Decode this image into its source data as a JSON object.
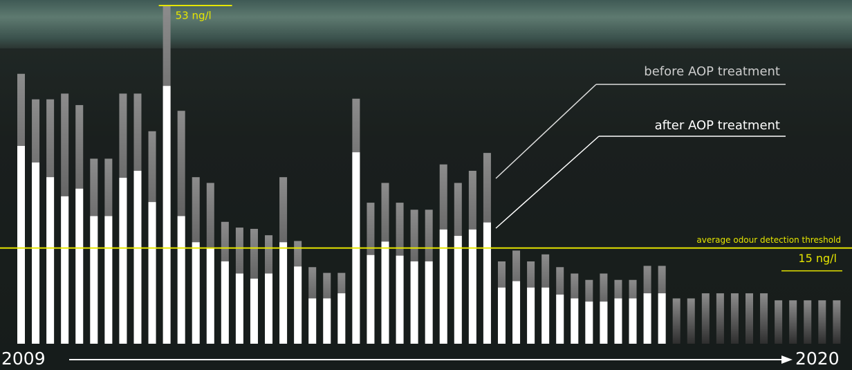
{
  "chart_data": {
    "type": "bar",
    "series": [
      {
        "name": "before AOP treatment",
        "color": "#8c8c8c",
        "values": [
          42.3,
          38.3,
          38.3,
          39.2,
          37.4,
          29.0,
          29.0,
          39.2,
          39.2,
          33.3,
          53,
          36.5,
          26.1,
          25.2,
          19.1,
          18.2,
          18.0,
          17.0,
          26.1,
          16.1,
          12.0,
          11.1,
          11.1,
          38.4,
          22.1,
          25.2,
          22.1,
          21.0,
          21.0,
          28.1,
          25.2,
          27.1,
          29.9,
          12.9,
          14.6,
          12.9,
          14.0,
          12.0,
          11.0,
          10.0,
          11.0,
          10.0,
          10.0,
          12.2,
          12.2,
          7.1,
          7.1,
          7.9,
          7.9,
          7.9,
          7.9,
          7.9,
          6.8,
          6.8,
          6.8,
          6.8,
          6.8
        ],
        "value_labels": [
          null,
          null,
          null,
          null,
          null,
          null,
          null,
          null,
          null,
          null,
          "53 ng/l",
          null,
          null,
          null,
          null,
          null,
          null,
          null,
          null,
          null,
          null,
          null,
          null,
          null,
          null,
          null,
          null,
          null,
          null,
          null,
          null,
          null,
          null,
          null,
          null,
          null,
          null,
          null,
          null,
          null,
          null,
          null,
          null,
          null,
          null,
          null,
          null,
          null,
          null,
          null,
          null,
          null,
          null,
          null,
          null,
          null,
          null
        ]
      },
      {
        "name": "after AOP treatment",
        "color": "#ffffff",
        "values": [
          31.0,
          28.4,
          26.1,
          23.1,
          24.3,
          20.0,
          20.0,
          26.0,
          27.1,
          22.2,
          40.4,
          20.0,
          15.9,
          15.0,
          12.9,
          11.0,
          10.2,
          11.0,
          15.9,
          12.1,
          7.1,
          7.1,
          7.9,
          30.0,
          13.9,
          16.0,
          13.8,
          12.9,
          12.9,
          17.9,
          16.9,
          17.9,
          19.0,
          8.8,
          9.8,
          8.8,
          8.8,
          7.7,
          7.1,
          6.6,
          6.6,
          7.1,
          7.1,
          7.9,
          7.9,
          null,
          null,
          null,
          null,
          null,
          null,
          null,
          null,
          null,
          null,
          null,
          null
        ]
      }
    ],
    "threshold": {
      "value": 15,
      "label": "15 ng/l",
      "name": "average odour detection threshold",
      "color": "#e6e600"
    },
    "x_range_labels": [
      "2009",
      "2020"
    ],
    "ylim": [
      0,
      53
    ]
  }
}
